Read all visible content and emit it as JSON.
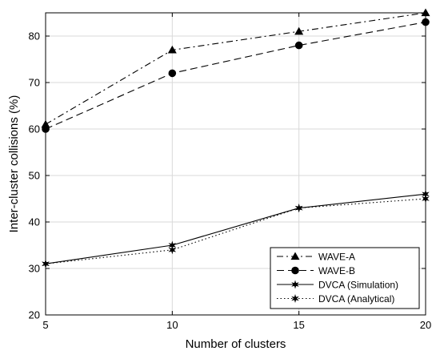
{
  "chart_data": {
    "type": "line",
    "title": "",
    "xlabel": "Number of clusters",
    "ylabel": "Inter-cluster collisions (%)",
    "x": [
      5,
      10,
      15,
      20
    ],
    "xlim": [
      5,
      20
    ],
    "ylim": [
      20,
      85
    ],
    "xticks": [
      5,
      10,
      15,
      20
    ],
    "yticks": [
      20,
      30,
      40,
      50,
      60,
      70,
      80
    ],
    "grid": true,
    "legend_position": "bottom-right",
    "series": [
      {
        "name": "WAVE-A",
        "values": [
          61,
          77,
          81,
          85
        ],
        "line_style": "dash-dot",
        "marker": "triangle"
      },
      {
        "name": "WAVE-B",
        "values": [
          60,
          72,
          78,
          83
        ],
        "line_style": "dashed",
        "marker": "circle"
      },
      {
        "name": "DVCA (Simulation)",
        "values": [
          31,
          35,
          43,
          46
        ],
        "line_style": "solid",
        "marker": "hexagram"
      },
      {
        "name": "DVCA (Analytical)",
        "values": [
          31,
          34,
          43,
          45
        ],
        "line_style": "dotted",
        "marker": "hexagram"
      }
    ],
    "colors": {
      "line": "#000000",
      "grid": "#d9d9d9",
      "background": "#ffffff"
    }
  }
}
